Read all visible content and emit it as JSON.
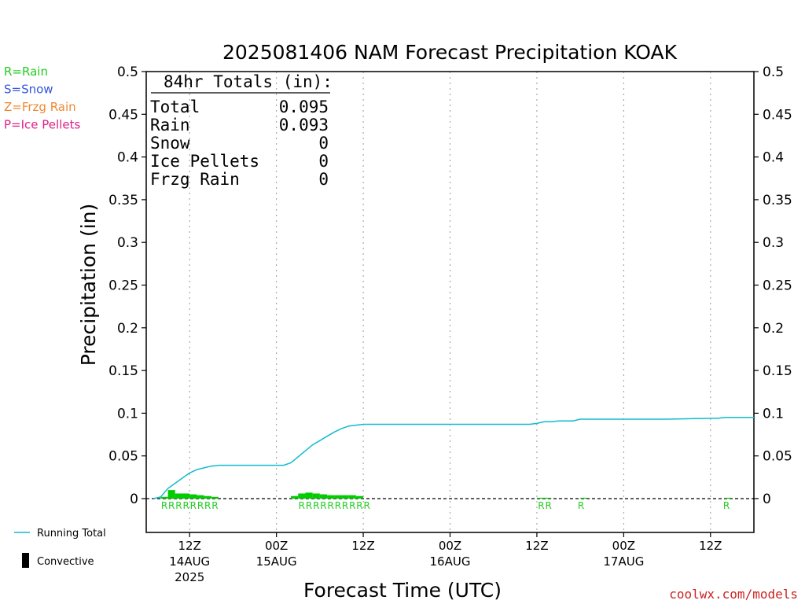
{
  "chart_data": {
    "type": "line",
    "title": "2025081406 NAM Forecast Precipitation KOAK",
    "ylabel": "Precipitation (in)",
    "xlabel": "Forecast Time (UTC)",
    "ylim": [
      0,
      0.5
    ],
    "y_ticks": [
      "0",
      "0.05",
      "0.1",
      "0.15",
      "0.2",
      "0.25",
      "0.3",
      "0.35",
      "0.4",
      "0.45",
      "0.5"
    ],
    "x_range_hours": [
      0,
      84
    ],
    "x_ticks": [
      {
        "hour": 6,
        "label": "12Z",
        "date": "14AUG",
        "year": "2025"
      },
      {
        "hour": 18,
        "label": "00Z",
        "date": "15AUG",
        "year": ""
      },
      {
        "hour": 30,
        "label": "12Z",
        "date": "",
        "year": ""
      },
      {
        "hour": 42,
        "label": "00Z",
        "date": "16AUG",
        "year": ""
      },
      {
        "hour": 54,
        "label": "12Z",
        "date": "",
        "year": ""
      },
      {
        "hour": 66,
        "label": "00Z",
        "date": "17AUG",
        "year": ""
      },
      {
        "hour": 78,
        "label": "12Z",
        "date": "",
        "year": ""
      }
    ],
    "ptype_legend": [
      {
        "text": "R=Rain",
        "color": "#22cc22"
      },
      {
        "text": "S=Snow",
        "color": "#3355dd"
      },
      {
        "text": "Z=Frzg Rain",
        "color": "#ee8833"
      },
      {
        "text": "P=Ice Pellets",
        "color": "#dd2288"
      }
    ],
    "totals": {
      "heading": "84hr Totals (in):",
      "rows": [
        {
          "label": "Total",
          "value": "0.095"
        },
        {
          "label": "Rain",
          "value": "0.093"
        },
        {
          "label": "Snow",
          "value": "0"
        },
        {
          "label": "Ice Pellets",
          "value": "0"
        },
        {
          "label": "Frzg Rain",
          "value": "0"
        }
      ]
    },
    "series_legend": {
      "running_total": "Running Total",
      "convective": "Convective"
    },
    "running_total_color": "#11bbcc",
    "bar_color": "#00cc00",
    "running_total": {
      "hours": [
        1,
        2,
        3,
        4,
        5,
        6,
        7,
        8,
        9,
        10,
        12,
        14,
        16,
        18,
        19,
        20,
        21,
        22,
        23,
        24,
        25,
        26,
        27,
        28,
        29,
        30,
        36,
        42,
        48,
        53,
        54,
        55,
        56,
        57,
        58,
        59,
        60,
        66,
        72,
        78,
        79,
        80,
        84
      ],
      "values": [
        0.0,
        0.002,
        0.012,
        0.018,
        0.024,
        0.03,
        0.034,
        0.036,
        0.038,
        0.039,
        0.039,
        0.039,
        0.039,
        0.039,
        0.039,
        0.042,
        0.049,
        0.056,
        0.063,
        0.068,
        0.073,
        0.078,
        0.082,
        0.085,
        0.086,
        0.087,
        0.087,
        0.087,
        0.087,
        0.087,
        0.088,
        0.09,
        0.09,
        0.091,
        0.091,
        0.091,
        0.093,
        0.093,
        0.093,
        0.094,
        0.094,
        0.095,
        0.095
      ]
    },
    "hourly_precip": {
      "hours": [
        2,
        3,
        4,
        5,
        6,
        7,
        8,
        9,
        20,
        21,
        22,
        23,
        24,
        25,
        26,
        27,
        28,
        29,
        54,
        55,
        60,
        80
      ],
      "values": [
        0.002,
        0.01,
        0.006,
        0.006,
        0.005,
        0.004,
        0.003,
        0.002,
        0.003,
        0.006,
        0.007,
        0.006,
        0.005,
        0.004,
        0.004,
        0.004,
        0.004,
        0.003,
        0.001,
        0.001,
        0.001,
        0.001
      ]
    },
    "ptype_markers": [
      {
        "hour": 2.5,
        "text": "R"
      },
      {
        "hour": 3.5,
        "text": "R"
      },
      {
        "hour": 4.5,
        "text": "R"
      },
      {
        "hour": 5.5,
        "text": "R"
      },
      {
        "hour": 6.5,
        "text": "R"
      },
      {
        "hour": 7.5,
        "text": "R"
      },
      {
        "hour": 8.5,
        "text": "R"
      },
      {
        "hour": 9.5,
        "text": "R"
      },
      {
        "hour": 21.5,
        "text": "R"
      },
      {
        "hour": 22.5,
        "text": "R"
      },
      {
        "hour": 23.5,
        "text": "R"
      },
      {
        "hour": 24.5,
        "text": "R"
      },
      {
        "hour": 25.5,
        "text": "R"
      },
      {
        "hour": 26.5,
        "text": "R"
      },
      {
        "hour": 27.5,
        "text": "R"
      },
      {
        "hour": 28.5,
        "text": "R"
      },
      {
        "hour": 29.5,
        "text": "R"
      },
      {
        "hour": 30.5,
        "text": "R"
      },
      {
        "hour": 54.6,
        "text": "R"
      },
      {
        "hour": 55.6,
        "text": "R"
      },
      {
        "hour": 60.1,
        "text": "R"
      },
      {
        "hour": 80.2,
        "text": "R"
      }
    ]
  },
  "credit": {
    "text": "coolwx.com/models",
    "color": "#cc2222"
  }
}
